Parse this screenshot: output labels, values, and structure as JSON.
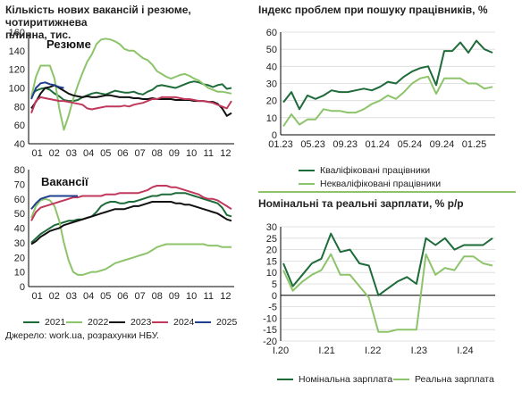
{
  "left_title": [
    "Кількість нових вакансій і резюме, чотиритижнева",
    "плинна, тис."
  ],
  "right_top_title": "Індекс проблем при пошуку працівників, %",
  "right_bottom_title": "Номінальні та реальні зарплати, % р/р",
  "source": "Джерело: work.ua, розрахунки НБУ.",
  "colors": {
    "c2021": "#1e6b3a",
    "c2022": "#8dc46b",
    "c2023": "#111111",
    "c2024": "#c0395c",
    "c2025": "#1f3f8f",
    "dark_green": "#1e6b3a",
    "light_green": "#8dc46b"
  },
  "chart_data": [
    {
      "type": "line",
      "inner_label": "Резюме",
      "x_ticks": [
        "01",
        "02",
        "03",
        "04",
        "05",
        "06",
        "07",
        "08",
        "09",
        "10",
        "11",
        "12"
      ],
      "ylim": [
        40,
        160
      ],
      "y_ticks": [
        40,
        60,
        80,
        100,
        120,
        140,
        160
      ],
      "grid": false,
      "series": [
        {
          "name": "2021",
          "color": "#1e6b3a",
          "values": [
            93,
            97,
            99,
            100,
            98,
            94,
            91,
            87,
            86,
            86,
            87,
            90,
            92,
            94,
            95,
            94,
            93,
            95,
            97,
            96,
            95,
            95,
            96,
            94,
            93,
            96,
            98,
            102,
            103,
            102,
            101,
            100,
            102,
            104,
            106,
            107,
            106,
            104,
            103,
            101,
            103,
            104,
            99,
            100
          ]
        },
        {
          "name": "2022",
          "color": "#8dc46b",
          "values": [
            90,
            112,
            124,
            124,
            124,
            110,
            78,
            55,
            70,
            88,
            103,
            116,
            128,
            136,
            147,
            152,
            153,
            152,
            150,
            147,
            142,
            140,
            140,
            136,
            132,
            130,
            125,
            118,
            115,
            112,
            110,
            112,
            114,
            115,
            113,
            110,
            108,
            104,
            100,
            98,
            96,
            96,
            95,
            94
          ]
        },
        {
          "name": "2023",
          "color": "#111111",
          "values": [
            78,
            85,
            94,
            100,
            101,
            103,
            100,
            97,
            94,
            92,
            91,
            90,
            91,
            90,
            90,
            91,
            92,
            92,
            91,
            90,
            90,
            90,
            89,
            89,
            88,
            88,
            89,
            88,
            88,
            88,
            88,
            87,
            87,
            87,
            87,
            86,
            86,
            86,
            85,
            85,
            83,
            78,
            70,
            73
          ]
        },
        {
          "name": "2024",
          "color": "#c0395c",
          "values": [
            73,
            86,
            90,
            89,
            88,
            87,
            86,
            86,
            85,
            84,
            83,
            82,
            78,
            77,
            78,
            79,
            80,
            80,
            80,
            80,
            81,
            80,
            82,
            83,
            84,
            86,
            88,
            88,
            90,
            90,
            90,
            90,
            89,
            88,
            88,
            87,
            86,
            86,
            85,
            84,
            82,
            80,
            78,
            86
          ]
        },
        {
          "name": "2025",
          "color": "#1f3f8f",
          "values": [
            88,
            100,
            105,
            106,
            104,
            103,
            101,
            100
          ]
        }
      ]
    },
    {
      "type": "line",
      "inner_label": "Вакансії",
      "x_ticks": [
        "01",
        "02",
        "03",
        "04",
        "05",
        "06",
        "07",
        "08",
        "09",
        "10",
        "11",
        "12"
      ],
      "ylim": [
        0,
        80
      ],
      "y_ticks": [
        0,
        10,
        20,
        30,
        40,
        50,
        60,
        70,
        80
      ],
      "grid": false,
      "series": [
        {
          "name": "2021",
          "color": "#1e6b3a",
          "values": [
            30,
            33,
            36,
            38,
            40,
            42,
            43,
            44,
            45,
            45,
            46,
            46,
            47,
            48,
            51,
            55,
            57,
            58,
            58,
            57,
            57,
            58,
            58,
            59,
            60,
            61,
            62,
            62,
            63,
            63,
            63,
            64,
            64,
            64,
            63,
            62,
            61,
            60,
            59,
            58,
            57,
            54,
            49,
            48
          ]
        },
        {
          "name": "2022",
          "color": "#8dc46b",
          "values": [
            47,
            55,
            59,
            60,
            59,
            55,
            45,
            30,
            18,
            10,
            8,
            8,
            9,
            10,
            10,
            11,
            12,
            14,
            16,
            17,
            18,
            19,
            20,
            21,
            22,
            23,
            25,
            27,
            28,
            29,
            29,
            29,
            29,
            29,
            29,
            29,
            29,
            29,
            28,
            28,
            28,
            27,
            27,
            27
          ]
        },
        {
          "name": "2023",
          "color": "#111111",
          "values": [
            29,
            31,
            34,
            36,
            38,
            39,
            40,
            42,
            43,
            44,
            45,
            46,
            47,
            48,
            49,
            50,
            51,
            52,
            53,
            53,
            53,
            54,
            55,
            55,
            56,
            57,
            58,
            58,
            58,
            58,
            58,
            57,
            57,
            56,
            56,
            55,
            54,
            53,
            52,
            51,
            50,
            48,
            46,
            45
          ]
        },
        {
          "name": "2024",
          "color": "#c0395c",
          "values": [
            45,
            51,
            54,
            55,
            56,
            57,
            58,
            59,
            60,
            61,
            61,
            62,
            62,
            62,
            62,
            62,
            63,
            63,
            63,
            64,
            64,
            64,
            64,
            64,
            65,
            66,
            68,
            69,
            69,
            69,
            68,
            68,
            67,
            66,
            65,
            64,
            63,
            61,
            60,
            60,
            59,
            57,
            55,
            53
          ]
        },
        {
          "name": "2025",
          "color": "#1f3f8f",
          "values": [
            53,
            57,
            60,
            61,
            62,
            62,
            62,
            62,
            62,
            62,
            62
          ]
        }
      ],
      "legend": [
        "2021",
        "2022",
        "2023",
        "2024",
        "2025"
      ]
    },
    {
      "type": "line",
      "x_ticks": [
        "01.23",
        "05.23",
        "09.23",
        "01.24",
        "05.24",
        "09.24",
        "01.25"
      ],
      "ylim": [
        0,
        60
      ],
      "y_ticks": [
        0,
        10,
        20,
        30,
        40,
        50,
        60
      ],
      "grid": true,
      "series": [
        {
          "name": "Кваліфіковані працівники",
          "color": "#1e6b3a",
          "values": [
            19,
            25,
            15,
            23,
            21,
            23,
            26,
            25,
            25,
            26,
            27,
            26,
            28,
            31,
            30,
            34,
            37,
            39,
            40,
            29,
            49,
            49,
            54,
            48,
            55,
            50,
            48
          ]
        },
        {
          "name": "Некваліфіковані працівники",
          "color": "#8dc46b",
          "values": [
            5,
            12,
            6,
            9,
            9,
            15,
            14,
            14,
            13,
            13,
            15,
            18,
            20,
            23,
            21,
            25,
            30,
            33,
            34,
            24,
            33,
            33,
            33,
            30,
            30,
            27,
            28
          ]
        }
      ]
    },
    {
      "type": "line",
      "x_ticks": [
        "I.20",
        "I.21",
        "I.22",
        "I.23",
        "I.24"
      ],
      "ylim": [
        -20,
        30
      ],
      "y_ticks": [
        -20,
        -15,
        -10,
        -5,
        0,
        5,
        10,
        15,
        20,
        25,
        30
      ],
      "grid": true,
      "series": [
        {
          "name": "Номінальна зарплата",
          "color": "#1e6b3a",
          "values": [
            14,
            4,
            9,
            14,
            16,
            27,
            19,
            20,
            14,
            13,
            0,
            3,
            6,
            8,
            5,
            25,
            22,
            25,
            20,
            22,
            22,
            22,
            25
          ]
        },
        {
          "name": "Реальна зарплата",
          "color": "#8dc46b",
          "values": [
            11,
            2,
            6,
            9,
            11,
            18,
            9,
            9,
            4,
            -1,
            -16,
            -16,
            -15,
            -15,
            -15,
            18,
            9,
            12,
            11,
            17,
            17,
            14,
            13
          ]
        }
      ]
    }
  ]
}
